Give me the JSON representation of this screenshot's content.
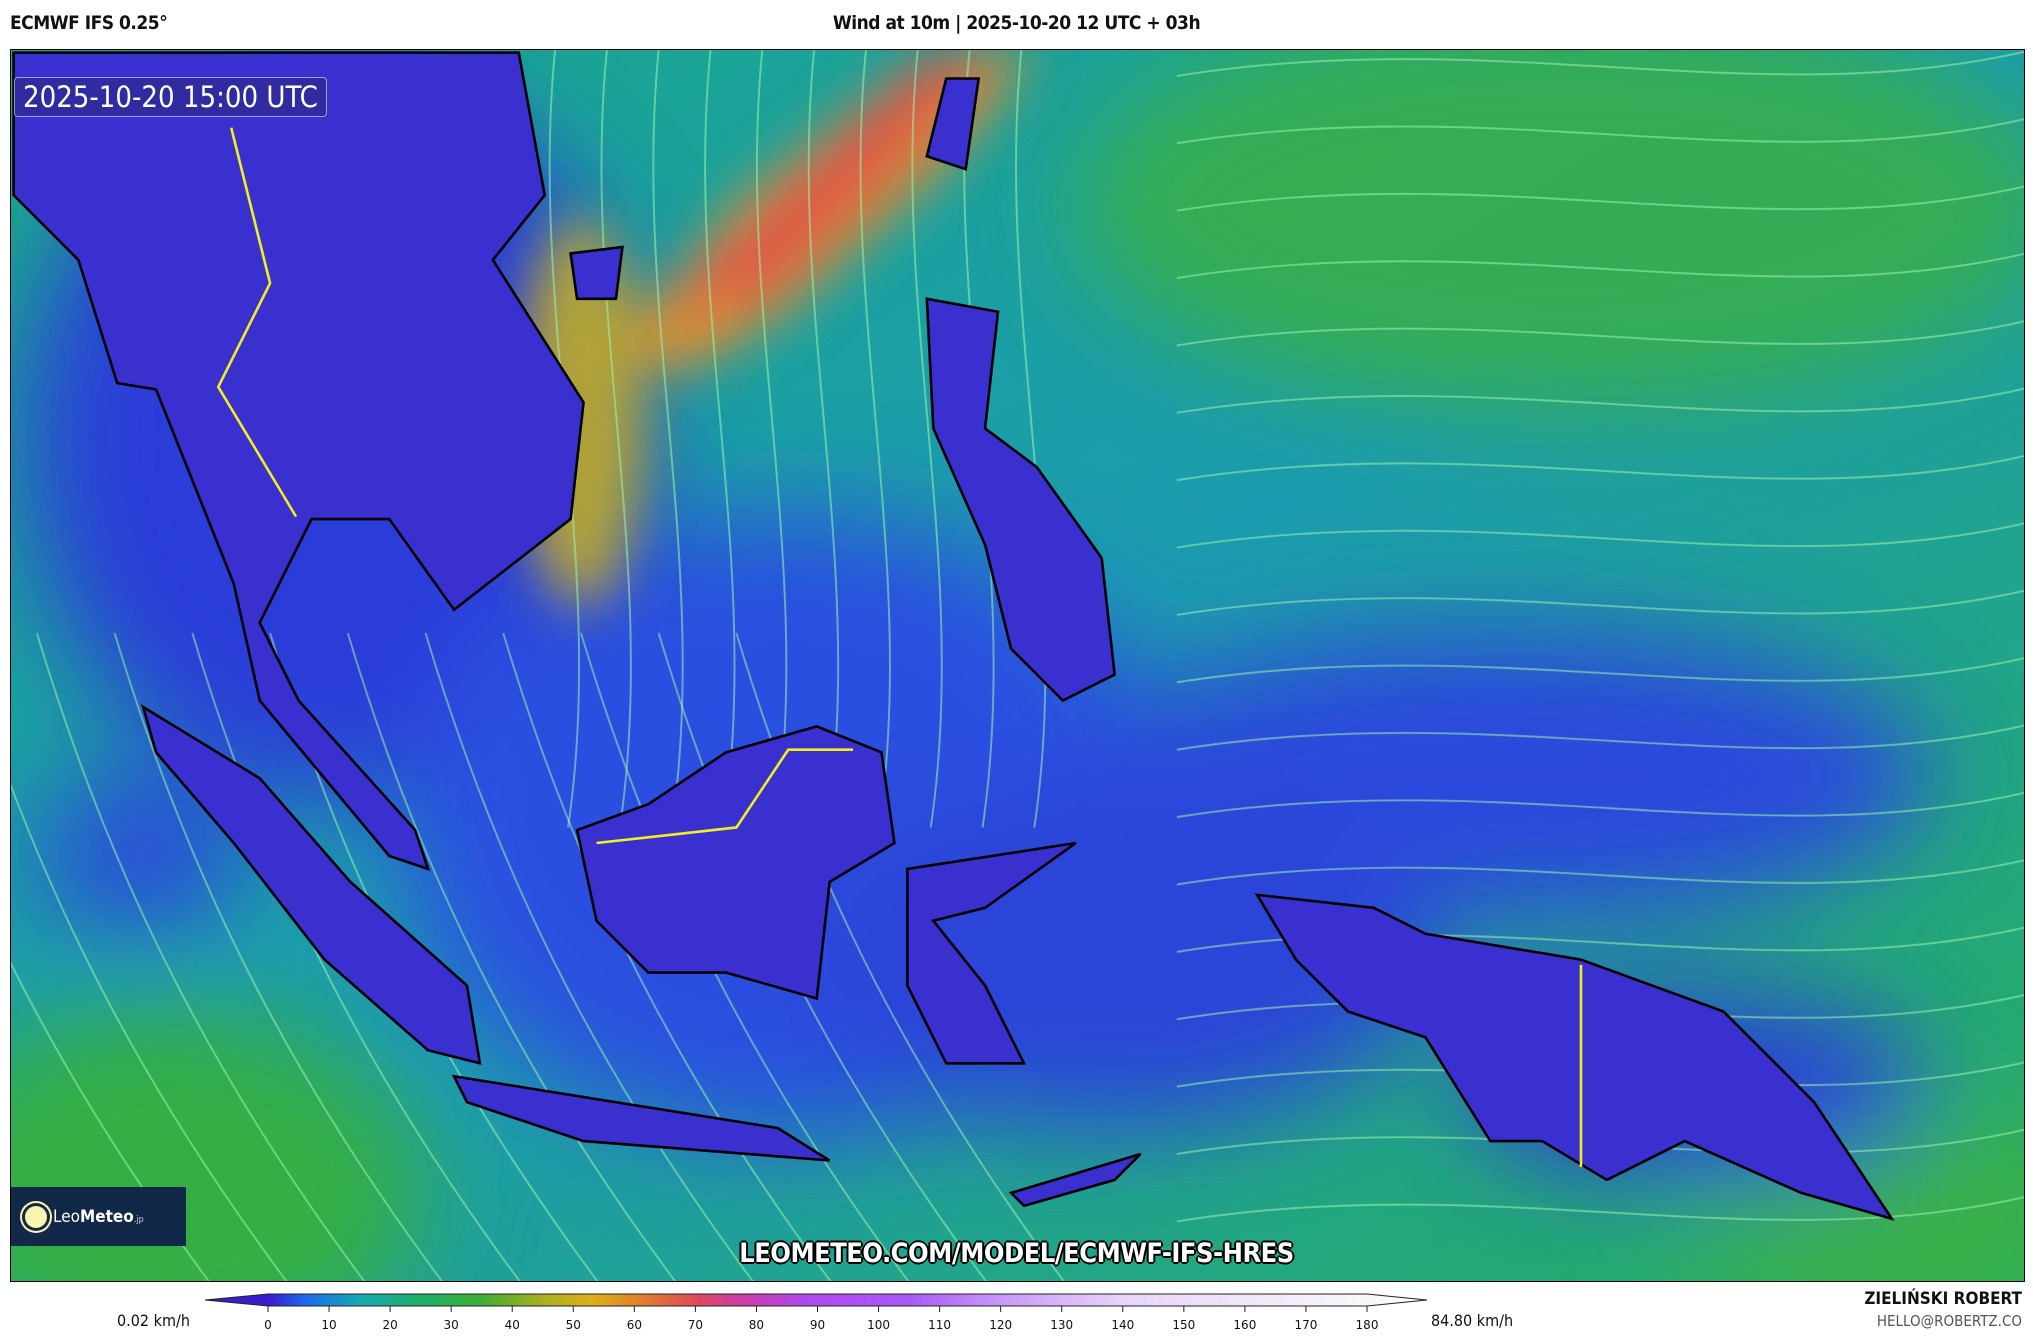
{
  "header": {
    "model": "ECMWF IFS 0.25°",
    "title": "Wind at 10m | 2025-10-20 12 UTC + 03h"
  },
  "map": {
    "valid_time": "2025-10-20 15:00 UTC",
    "watermark_url": "LEOMETEO.COM/MODEL/ECMWF-IFS-HRES",
    "logo": {
      "name": "Leo",
      "bold": "Meteo",
      "tld": ".jp",
      "icon": "sun-icon"
    },
    "colors": {
      "land": "#3a30d0",
      "coast": "#000000",
      "border": "#f0f020",
      "streamline": "#9cf5b0"
    }
  },
  "legend": {
    "min_label": "0.02 km/h",
    "max_label": "84.80 km/h",
    "unit": "km/h",
    "ticks": [
      "0",
      "10",
      "20",
      "30",
      "40",
      "50",
      "60",
      "70",
      "80",
      "90",
      "100",
      "110",
      "120",
      "130",
      "140",
      "150",
      "160",
      "170",
      "180"
    ],
    "range": [
      0,
      180
    ],
    "stops": [
      {
        "v": 0,
        "c": "#3a1ccc"
      },
      {
        "v": 6,
        "c": "#1f66ee"
      },
      {
        "v": 15,
        "c": "#16aab0"
      },
      {
        "v": 25,
        "c": "#1fae6a"
      },
      {
        "v": 35,
        "c": "#3eae32"
      },
      {
        "v": 45,
        "c": "#a8b020"
      },
      {
        "v": 53,
        "c": "#dcb018"
      },
      {
        "v": 62,
        "c": "#e07a30"
      },
      {
        "v": 70,
        "c": "#e04a5a"
      },
      {
        "v": 78,
        "c": "#cc3ca8"
      },
      {
        "v": 88,
        "c": "#b048f0"
      },
      {
        "v": 105,
        "c": "#a85af8"
      },
      {
        "v": 120,
        "c": "#c898f8"
      },
      {
        "v": 140,
        "c": "#e8d4f8"
      },
      {
        "v": 180,
        "c": "#f8f8fa"
      }
    ]
  },
  "credits": {
    "author": "ZIELIŃSKI ROBERT",
    "email": "HELLO@ROBERTZ.CO"
  }
}
